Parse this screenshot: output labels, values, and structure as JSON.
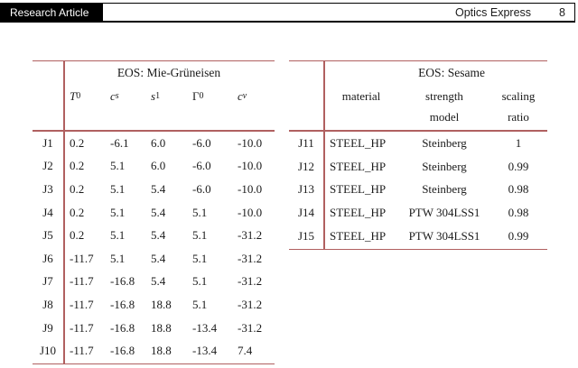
{
  "header": {
    "badge": "Research Article",
    "journal": "Optics Express",
    "page_number": "8"
  },
  "colors": {
    "rule": "#b06060",
    "badge_bg": "#000000"
  },
  "left_table": {
    "title": "EOS: Mie-Grüneisen",
    "columns": [
      {
        "base": "T",
        "sub": "0"
      },
      {
        "base": "c",
        "sub": "s"
      },
      {
        "base": "s",
        "sub": "1"
      },
      {
        "base": "Γ",
        "sub": "0"
      },
      {
        "base": "c",
        "sub": "v"
      }
    ],
    "rows": [
      {
        "label": "J1",
        "values": [
          "0.2",
          "-6.1",
          "6.0",
          "-6.0",
          "-10.0"
        ]
      },
      {
        "label": "J2",
        "values": [
          "0.2",
          "5.1",
          "6.0",
          "-6.0",
          "-10.0"
        ]
      },
      {
        "label": "J3",
        "values": [
          "0.2",
          "5.1",
          "5.4",
          "-6.0",
          "-10.0"
        ]
      },
      {
        "label": "J4",
        "values": [
          "0.2",
          "5.1",
          "5.4",
          "5.1",
          "-10.0"
        ]
      },
      {
        "label": "J5",
        "values": [
          "0.2",
          "5.1",
          "5.4",
          "5.1",
          "-31.2"
        ]
      },
      {
        "label": "J6",
        "values": [
          "-11.7",
          "5.1",
          "5.4",
          "5.1",
          "-31.2"
        ]
      },
      {
        "label": "J7",
        "values": [
          "-11.7",
          "-16.8",
          "5.4",
          "5.1",
          "-31.2"
        ]
      },
      {
        "label": "J8",
        "values": [
          "-11.7",
          "-16.8",
          "18.8",
          "5.1",
          "-31.2"
        ]
      },
      {
        "label": "J9",
        "values": [
          "-11.7",
          "-16.8",
          "18.8",
          "-13.4",
          "-31.2"
        ]
      },
      {
        "label": "J10",
        "values": [
          "-11.7",
          "-16.8",
          "18.8",
          "-13.4",
          "7.4"
        ]
      }
    ]
  },
  "right_table": {
    "title": "EOS: Sesame",
    "columns": [
      {
        "line1": "material",
        "line2": ""
      },
      {
        "line1": "strength",
        "line2": "model"
      },
      {
        "line1": "scaling",
        "line2": "ratio"
      }
    ],
    "rows": [
      {
        "label": "J11",
        "material": "STEEL_HP",
        "strength_model": "Steinberg",
        "scaling_ratio": "1"
      },
      {
        "label": "J12",
        "material": "STEEL_HP",
        "strength_model": "Steinberg",
        "scaling_ratio": "0.99"
      },
      {
        "label": "J13",
        "material": "STEEL_HP",
        "strength_model": "Steinberg",
        "scaling_ratio": "0.98"
      },
      {
        "label": "J14",
        "material": "STEEL_HP",
        "strength_model": "PTW 304LSS1",
        "scaling_ratio": "0.98"
      },
      {
        "label": "J15",
        "material": "STEEL_HP",
        "strength_model": "PTW 304LSS1",
        "scaling_ratio": "0.99"
      }
    ]
  }
}
